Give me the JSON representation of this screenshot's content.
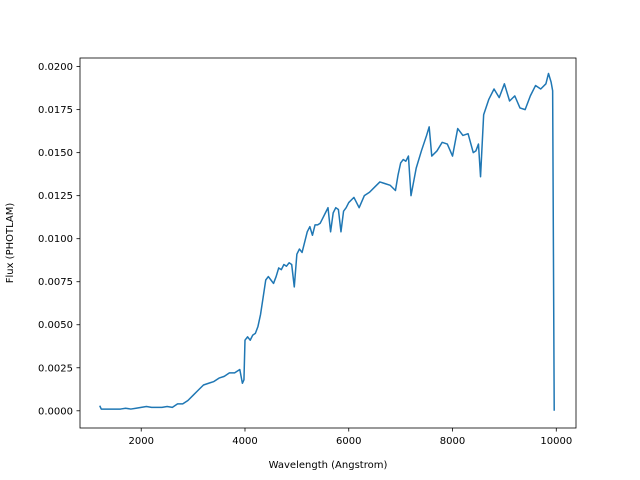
{
  "chart_data": {
    "type": "line",
    "title": "",
    "xlabel": "Wavelength (Angstrom)",
    "ylabel": "Flux (PHOTLAM)",
    "xlim": [
      820,
      10380
    ],
    "ylim": [
      -0.001,
      0.0205
    ],
    "grid": false,
    "xticks": [
      2000,
      4000,
      6000,
      8000,
      10000
    ],
    "xtick_labels": [
      "2000",
      "4000",
      "6000",
      "8000",
      "10000"
    ],
    "yticks": [
      0.0,
      0.0025,
      0.005,
      0.0075,
      0.01,
      0.0125,
      0.015,
      0.0175,
      0.02
    ],
    "ytick_labels": [
      "0.0000",
      "0.0025",
      "0.0050",
      "0.0075",
      "0.0100",
      "0.0125",
      "0.0150",
      "0.0175",
      "0.0200"
    ],
    "series": [
      {
        "color": "#1f77b4",
        "x": [
          1200,
          1230,
          1300,
          1400,
          1500,
          1600,
          1700,
          1800,
          1900,
          2000,
          2100,
          2200,
          2300,
          2400,
          2500,
          2600,
          2700,
          2800,
          2900,
          3000,
          3100,
          3200,
          3300,
          3400,
          3500,
          3600,
          3700,
          3800,
          3900,
          3950,
          3980,
          4000,
          4050,
          4100,
          4150,
          4200,
          4250,
          4300,
          4350,
          4400,
          4450,
          4500,
          4550,
          4600,
          4650,
          4700,
          4750,
          4800,
          4850,
          4900,
          4950,
          5000,
          5050,
          5100,
          5150,
          5200,
          5250,
          5300,
          5350,
          5400,
          5450,
          5500,
          5550,
          5600,
          5650,
          5700,
          5750,
          5800,
          5850,
          5900,
          5950,
          6000,
          6100,
          6200,
          6300,
          6400,
          6500,
          6600,
          6700,
          6800,
          6900,
          6950,
          7000,
          7050,
          7100,
          7150,
          7200,
          7300,
          7400,
          7500,
          7550,
          7600,
          7700,
          7800,
          7900,
          8000,
          8100,
          8200,
          8300,
          8400,
          8450,
          8500,
          8540,
          8560,
          8600,
          8700,
          8800,
          8900,
          9000,
          9100,
          9200,
          9300,
          9400,
          9500,
          9600,
          9700,
          9800,
          9850,
          9900,
          9930,
          9960
        ],
        "y": [
          0.0003,
          0.0001,
          0.0001,
          0.0001,
          0.0001,
          0.0001,
          0.00015,
          0.0001,
          0.00015,
          0.0002,
          0.00025,
          0.0002,
          0.0002,
          0.0002,
          0.00025,
          0.0002,
          0.0004,
          0.0004,
          0.0006,
          0.0009,
          0.0012,
          0.0015,
          0.0016,
          0.0017,
          0.0019,
          0.002,
          0.0022,
          0.0022,
          0.0024,
          0.0016,
          0.0018,
          0.0041,
          0.0043,
          0.0041,
          0.0044,
          0.0045,
          0.0049,
          0.0056,
          0.0066,
          0.0076,
          0.0078,
          0.0076,
          0.0074,
          0.0078,
          0.0083,
          0.0082,
          0.0085,
          0.0084,
          0.0086,
          0.0085,
          0.0072,
          0.0091,
          0.0094,
          0.0092,
          0.0098,
          0.0104,
          0.0107,
          0.0102,
          0.0108,
          0.0108,
          0.0109,
          0.0112,
          0.0115,
          0.0118,
          0.0104,
          0.0115,
          0.0118,
          0.0117,
          0.0104,
          0.0116,
          0.0118,
          0.0121,
          0.0124,
          0.0118,
          0.0125,
          0.0127,
          0.013,
          0.0133,
          0.0132,
          0.0131,
          0.0128,
          0.0137,
          0.0144,
          0.0146,
          0.0145,
          0.0148,
          0.0125,
          0.0141,
          0.0151,
          0.016,
          0.0165,
          0.0148,
          0.0151,
          0.0156,
          0.0155,
          0.0148,
          0.0164,
          0.016,
          0.0161,
          0.015,
          0.0151,
          0.0155,
          0.0136,
          0.0148,
          0.0172,
          0.0181,
          0.0187,
          0.0182,
          0.019,
          0.018,
          0.0183,
          0.0176,
          0.0175,
          0.0183,
          0.0189,
          0.0187,
          0.019,
          0.0196,
          0.0191,
          0.0186,
          0.0
        ]
      }
    ]
  }
}
